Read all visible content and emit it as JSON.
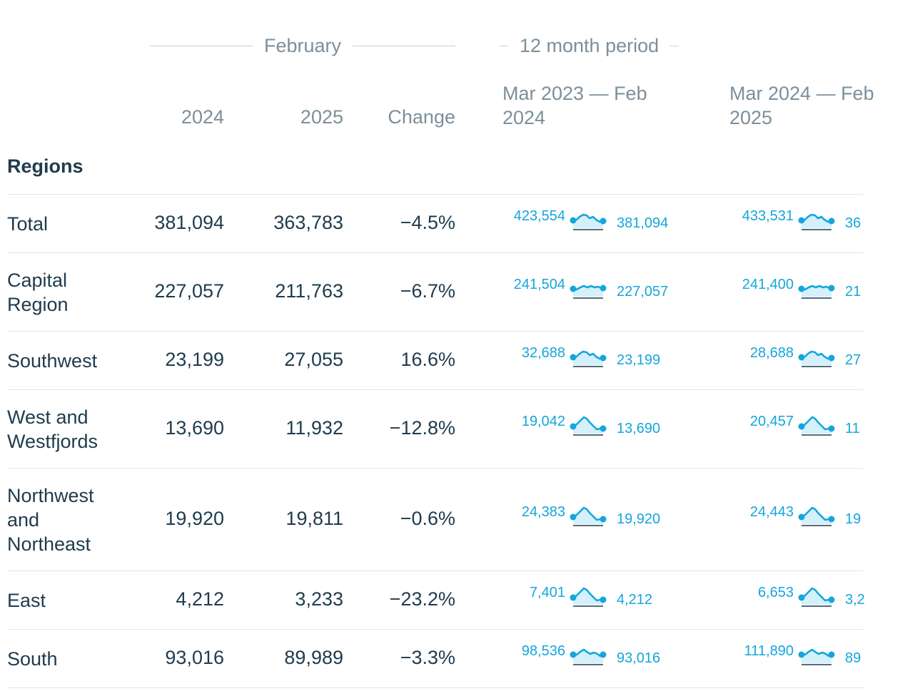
{
  "header": {
    "february": "February",
    "period": "12 month period",
    "col_2024": "2024",
    "col_2025": "2025",
    "col_change": "Change",
    "period1": "Mar 2023 — Feb 2024",
    "period1_line1": "Mar 2023 — Feb",
    "period1_line2": "2024",
    "period2_line1": "Mar 2024 — Feb",
    "period2_line2": "2025"
  },
  "section_label": "Regions",
  "colors": {
    "text": "#1f3b4d",
    "muted": "#7d8f9a",
    "accent": "#14a6dc",
    "fill": "#d4f0fb",
    "rule": "#dfe5e9"
  },
  "rows": [
    {
      "name": "Total",
      "y2024": "381,094",
      "y2025": "363,783",
      "change": "−4.5%",
      "p1": {
        "start": "423,554",
        "end": "381,094"
      },
      "p2": {
        "start": "433,531",
        "end": "36"
      }
    },
    {
      "name": "Capital Region",
      "y2024": "227,057",
      "y2025": "211,763",
      "change": "−6.7%",
      "p1": {
        "start": "241,504",
        "end": "227,057"
      },
      "p2": {
        "start": "241,400",
        "end": "21"
      }
    },
    {
      "name": "Southwest",
      "y2024": "23,199",
      "y2025": "27,055",
      "change": "16.6%",
      "p1": {
        "start": "32,688",
        "end": "23,199"
      },
      "p2": {
        "start": "28,688",
        "end": "27"
      }
    },
    {
      "name": "West and Westfjords",
      "y2024": "13,690",
      "y2025": "11,932",
      "change": "−12.8%",
      "p1": {
        "start": "19,042",
        "end": "13,690"
      },
      "p2": {
        "start": "20,457",
        "end": "11"
      }
    },
    {
      "name": "Northwest and Northeast",
      "y2024": "19,920",
      "y2025": "19,811",
      "change": "−0.6%",
      "p1": {
        "start": "24,383",
        "end": "19,920"
      },
      "p2": {
        "start": "24,443",
        "end": "19"
      }
    },
    {
      "name": "East",
      "y2024": "4,212",
      "y2025": "3,233",
      "change": "−23.2%",
      "p1": {
        "start": "7,401",
        "end": "4,212"
      },
      "p2": {
        "start": "6,653",
        "end": "3,2"
      }
    },
    {
      "name": "South",
      "y2024": "93,016",
      "y2025": "89,989",
      "change": "−3.3%",
      "p1": {
        "start": "98,536",
        "end": "93,016"
      },
      "p2": {
        "start": "111,890",
        "end": "89"
      }
    }
  ]
}
